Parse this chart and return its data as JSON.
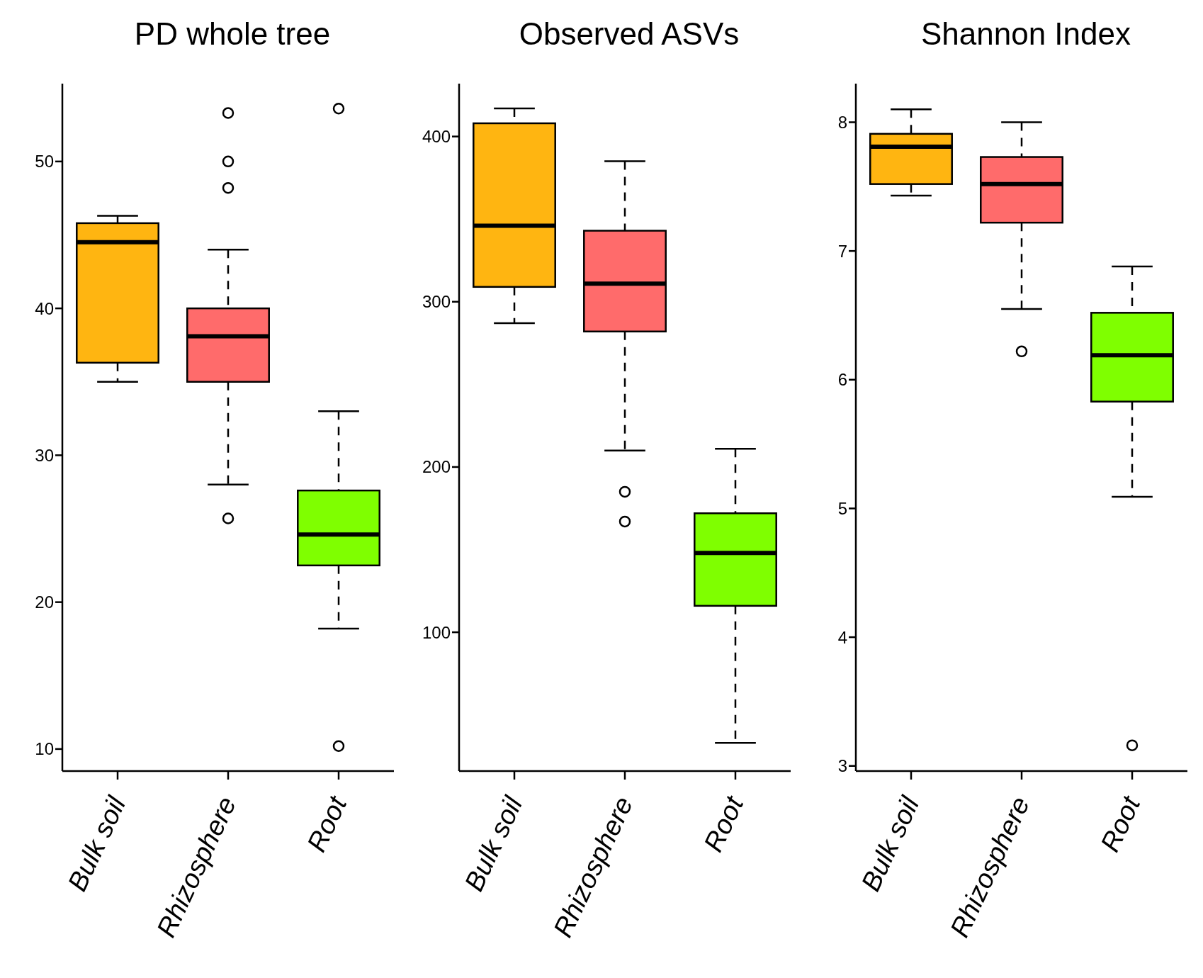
{
  "chart_data": [
    {
      "type": "box",
      "title": "PD whole tree",
      "categories": [
        "Bulk soil",
        "Rhizosphere",
        "Root"
      ],
      "colors": [
        "#ffb511",
        "#ff6b6b",
        "#7fff00"
      ],
      "ylim": [
        8.5,
        55.3
      ],
      "yticks": [
        10,
        20,
        30,
        40,
        50
      ],
      "grid": false,
      "boxes": [
        {
          "low": 35.0,
          "q1": 36.3,
          "median": 44.5,
          "q3": 45.8,
          "high": 46.3
        },
        {
          "low": 28.0,
          "q1": 35.0,
          "median": 38.1,
          "q3": 40.0,
          "high": 44.0,
          "outliers": [
            53.3,
            50.0,
            48.2,
            25.7
          ]
        },
        {
          "low": 18.2,
          "q1": 22.5,
          "median": 24.6,
          "q3": 27.6,
          "high": 33.0,
          "outliers": [
            53.6,
            10.2
          ]
        }
      ]
    },
    {
      "type": "box",
      "title": "Observed ASVs",
      "categories": [
        "Bulk soil",
        "Rhizosphere",
        "Root"
      ],
      "colors": [
        "#ffb511",
        "#ff6b6b",
        "#7fff00"
      ],
      "ylim": [
        16,
        432
      ],
      "yticks": [
        100,
        200,
        300,
        400
      ],
      "grid": false,
      "boxes": [
        {
          "low": 287,
          "q1": 309,
          "median": 346,
          "q3": 408,
          "high": 417
        },
        {
          "low": 210,
          "q1": 282,
          "median": 311,
          "q3": 343,
          "high": 385,
          "outliers": [
            185,
            167
          ]
        },
        {
          "low": 33,
          "q1": 116,
          "median": 148,
          "q3": 172,
          "high": 211
        }
      ]
    },
    {
      "type": "box",
      "title": "Shannon Index",
      "categories": [
        "Bulk soil",
        "Rhizosphere",
        "Root"
      ],
      "colors": [
        "#ffb511",
        "#ff6b6b",
        "#7fff00"
      ],
      "ylim": [
        2.96,
        8.3
      ],
      "yticks": [
        3,
        4,
        5,
        6,
        7,
        8
      ],
      "grid": false,
      "boxes": [
        {
          "low": 7.43,
          "q1": 7.52,
          "median": 7.81,
          "q3": 7.91,
          "high": 8.1
        },
        {
          "low": 6.55,
          "q1": 7.22,
          "median": 7.52,
          "q3": 7.73,
          "high": 8.0,
          "outliers": [
            6.22
          ]
        },
        {
          "low": 5.09,
          "q1": 5.83,
          "median": 6.19,
          "q3": 6.52,
          "high": 6.88,
          "outliers": [
            3.16
          ]
        }
      ]
    }
  ]
}
